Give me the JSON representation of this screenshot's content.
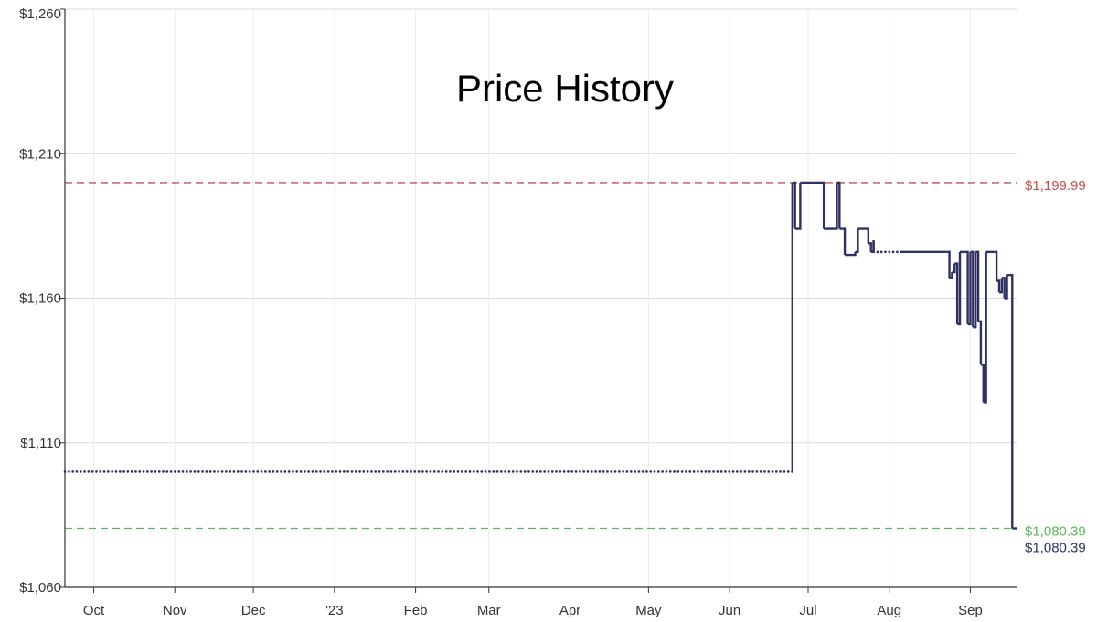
{
  "chart_data": {
    "type": "line",
    "title": "Price History",
    "xlabel": "",
    "ylabel": "",
    "ylim": [
      1060,
      1260
    ],
    "y_ticks": [
      "$1,060",
      "$1,110",
      "$1,160",
      "$1,210",
      "$1,260"
    ],
    "y_tick_values": [
      1060,
      1110,
      1160,
      1210,
      1260
    ],
    "x_tick_labels": [
      "Oct",
      "Nov",
      "Dec",
      "'23",
      "Feb",
      "Mar",
      "Apr",
      "May",
      "Jun",
      "Jul",
      "Aug",
      "Sep"
    ],
    "x_tick_dates": [
      "2022-10-01",
      "2022-11-01",
      "2022-12-01",
      "2023-01-01",
      "2023-02-01",
      "2023-03-01",
      "2023-04-01",
      "2023-05-01",
      "2023-06-01",
      "2023-07-01",
      "2023-08-01",
      "2023-09-01"
    ],
    "x_range": [
      "2022-09-20",
      "2023-09-19"
    ],
    "grid": true,
    "reference_lines": [
      {
        "label": "$1,199.99",
        "value": 1199.99,
        "color": "#c0504d",
        "style": "dashed"
      },
      {
        "label": "$1,080.39",
        "value": 1080.39,
        "color": "#5cb85c",
        "style": "dashed"
      }
    ],
    "current_price_label": "$1,080.39",
    "series": [
      {
        "color": "#2e3062",
        "points": [
          [
            "2022-09-20",
            1100,
            "gap"
          ],
          [
            "2023-06-25",
            1100,
            "solid"
          ],
          [
            "2023-06-25",
            1199.99,
            "solid"
          ],
          [
            "2023-06-26",
            1184,
            "solid"
          ],
          [
            "2023-06-28",
            1199.99,
            "solid"
          ],
          [
            "2023-07-07",
            1184,
            "solid"
          ],
          [
            "2023-07-12",
            1199.99,
            "solid"
          ],
          [
            "2023-07-13",
            1184,
            "solid"
          ],
          [
            "2023-07-15",
            1175,
            "solid"
          ],
          [
            "2023-07-19",
            1176,
            "solid"
          ],
          [
            "2023-07-20",
            1184,
            "solid"
          ],
          [
            "2023-07-24",
            1179,
            "solid"
          ],
          [
            "2023-07-25",
            1176,
            "solid"
          ],
          [
            "2023-07-26",
            1180,
            "solid"
          ],
          [
            "2023-07-26",
            1176,
            "gap"
          ],
          [
            "2023-08-05",
            1176,
            "solid"
          ],
          [
            "2023-08-23",
            1176,
            "solid"
          ],
          [
            "2023-08-24",
            1167,
            "solid"
          ],
          [
            "2023-08-25",
            1169,
            "solid"
          ],
          [
            "2023-08-26",
            1172,
            "solid"
          ],
          [
            "2023-08-27",
            1151,
            "solid"
          ],
          [
            "2023-08-28",
            1176,
            "solid"
          ],
          [
            "2023-08-30",
            1176,
            "solid"
          ],
          [
            "2023-08-31",
            1151,
            "solid"
          ],
          [
            "2023-09-01",
            1176,
            "solid"
          ],
          [
            "2023-09-02",
            1150,
            "solid"
          ],
          [
            "2023-09-03",
            1176,
            "solid"
          ],
          [
            "2023-09-04",
            1152,
            "solid"
          ],
          [
            "2023-09-05",
            1137,
            "solid"
          ],
          [
            "2023-09-06",
            1124,
            "solid"
          ],
          [
            "2023-09-07",
            1176,
            "solid"
          ],
          [
            "2023-09-10",
            1176,
            "solid"
          ],
          [
            "2023-09-11",
            1166,
            "solid"
          ],
          [
            "2023-09-12",
            1162,
            "solid"
          ],
          [
            "2023-09-13",
            1167,
            "solid"
          ],
          [
            "2023-09-14",
            1160,
            "solid"
          ],
          [
            "2023-09-15",
            1168,
            "solid"
          ],
          [
            "2023-09-16",
            1168,
            "solid"
          ],
          [
            "2023-09-17",
            1080.39,
            "solid"
          ]
        ]
      }
    ]
  }
}
